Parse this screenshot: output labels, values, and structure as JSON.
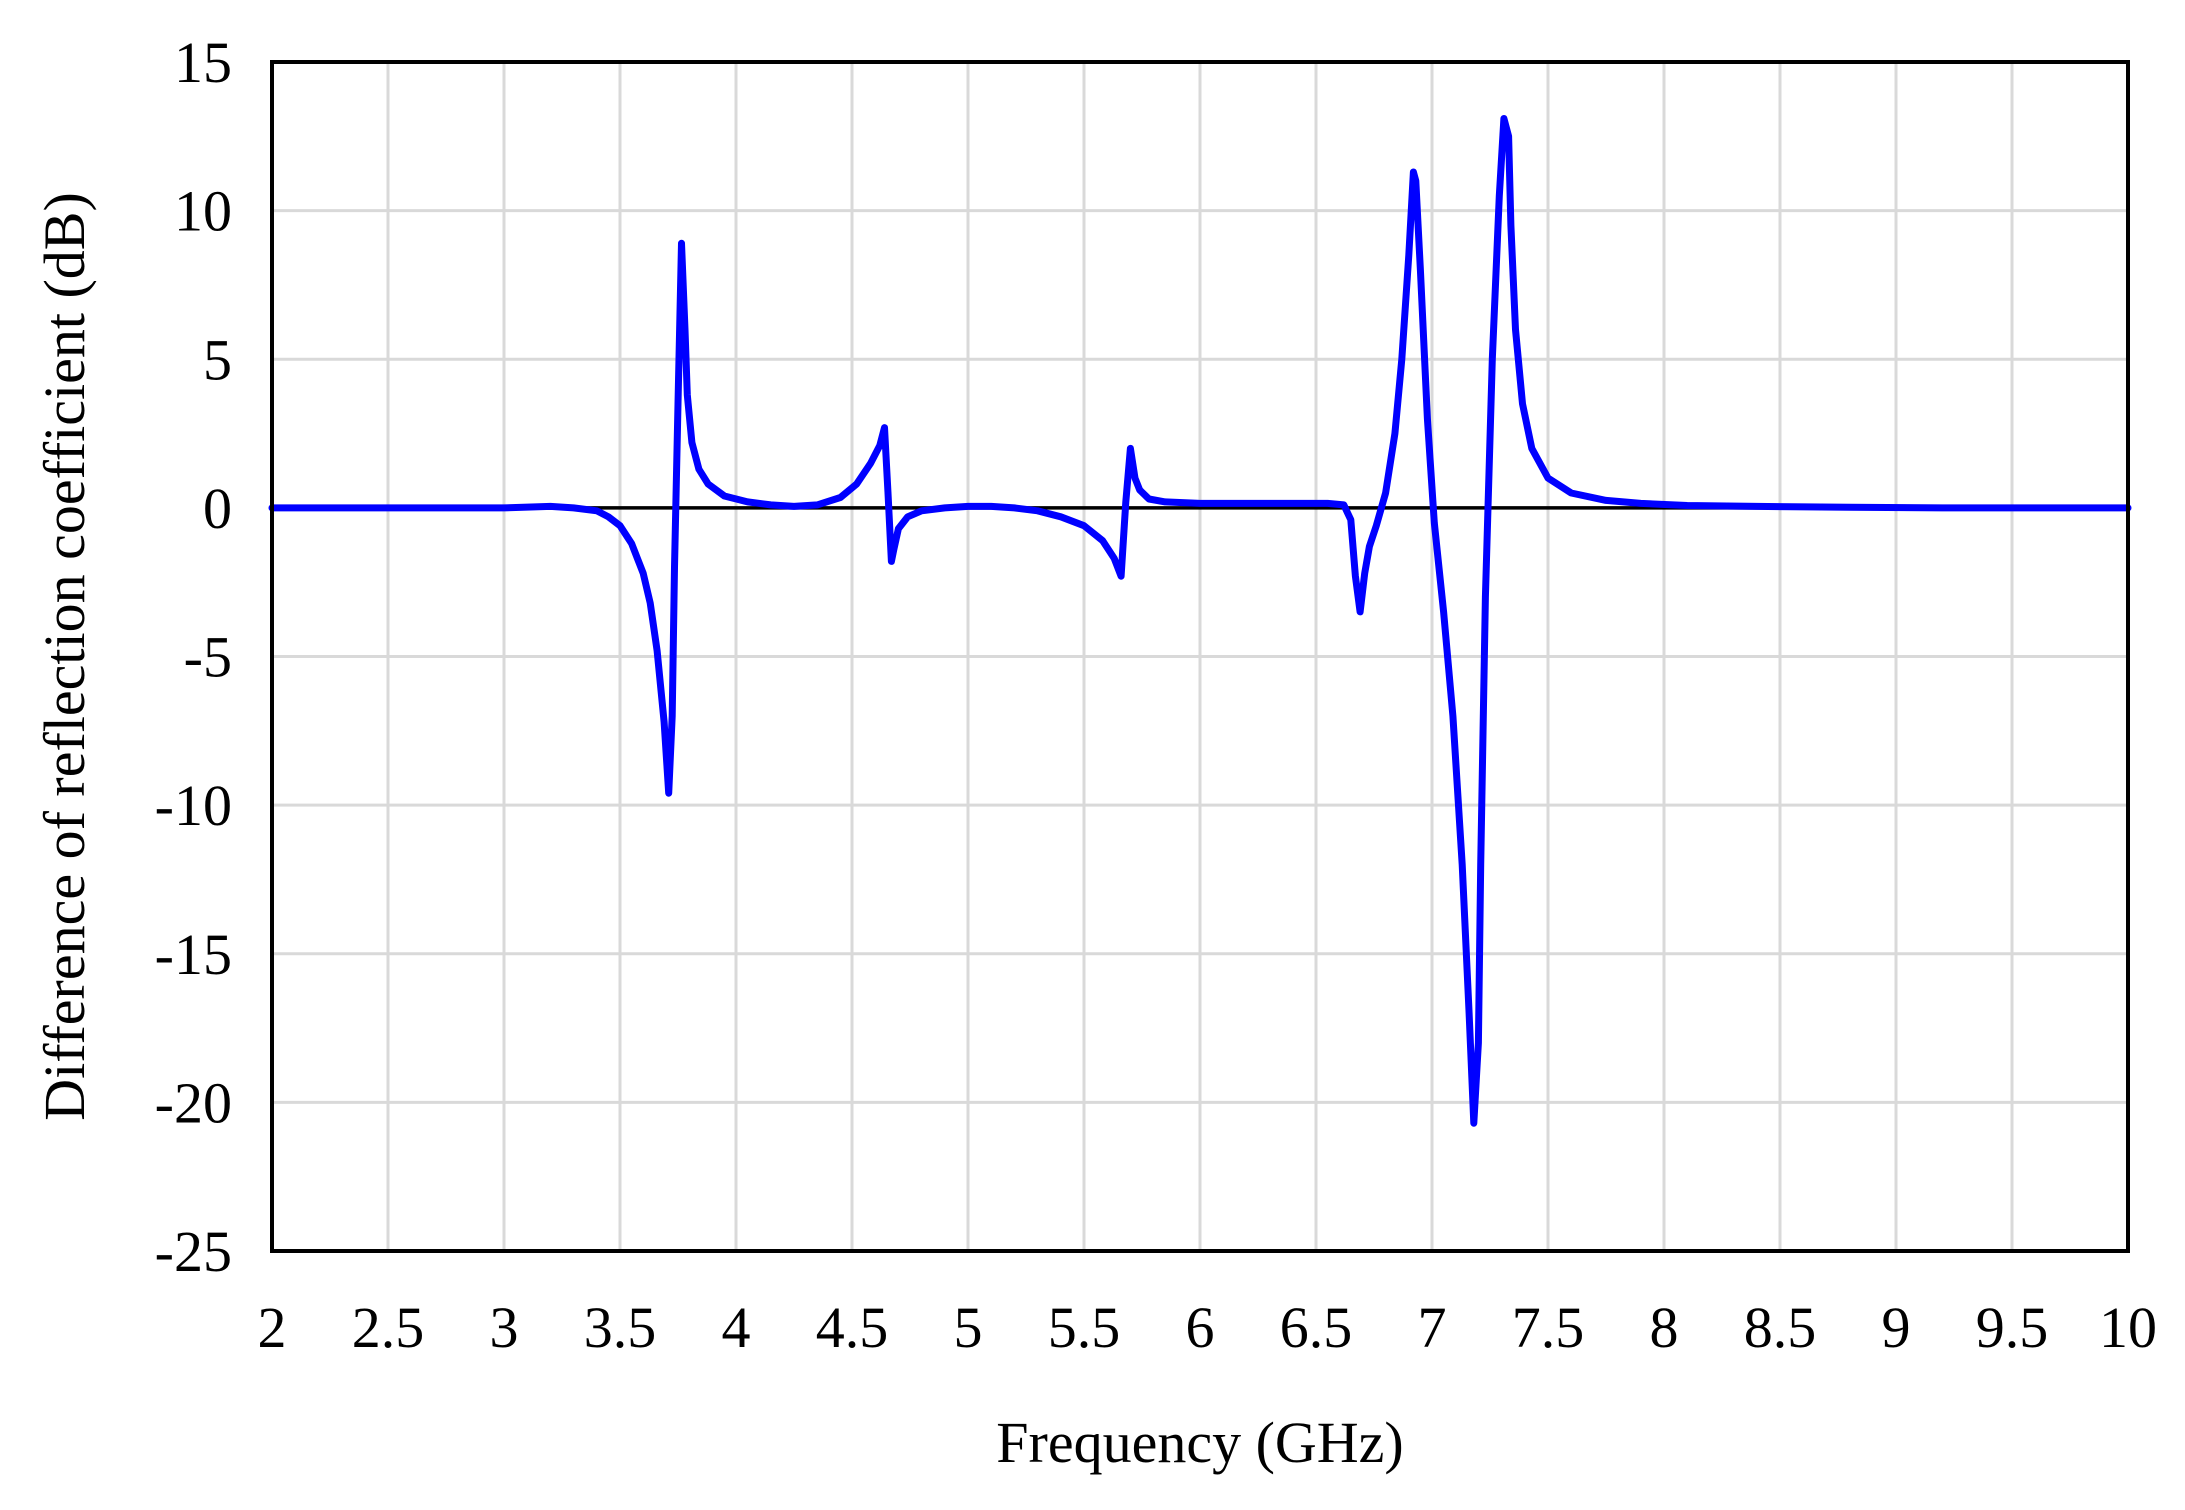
{
  "chart_data": {
    "type": "line",
    "title": "",
    "xlabel": "Frequency  (GHz)",
    "ylabel": "Difference  of reflection  coefficient   (dB)",
    "xlim": [
      2,
      10
    ],
    "ylim": [
      -25,
      15
    ],
    "xticks": [
      "2",
      "2.5",
      "3",
      "3.5",
      "4",
      "4.5",
      "5",
      "5.5",
      "6",
      "6.5",
      "7",
      "7.5",
      "8",
      "8.5",
      "9",
      "9.5",
      "10"
    ],
    "yticks": [
      "15",
      "10",
      "5",
      "0",
      "-5",
      "-10",
      "-15",
      "-20",
      "-25"
    ],
    "grid": true,
    "legend": "none",
    "zero_line": true,
    "colors": {
      "series": "#0000ff",
      "grid": "#d9d9d9",
      "axis": "#000000",
      "zero_line": "#000000"
    },
    "series": [
      {
        "x": [
          2.0,
          2.5,
          3.0,
          3.2,
          3.3,
          3.4,
          3.45,
          3.5,
          3.55,
          3.6,
          3.63,
          3.66,
          3.69,
          3.71,
          3.725,
          3.735,
          3.75,
          3.765,
          3.78,
          3.79,
          3.81,
          3.84,
          3.88,
          3.95,
          4.05,
          4.15,
          4.25,
          4.35,
          4.45,
          4.52,
          4.58,
          4.62,
          4.64,
          4.655,
          4.67,
          4.68,
          4.7,
          4.74,
          4.8,
          4.9,
          5.0,
          5.1,
          5.2,
          5.3,
          5.4,
          5.5,
          5.58,
          5.63,
          5.66,
          5.68,
          5.7,
          5.72,
          5.74,
          5.78,
          5.85,
          6.0,
          6.2,
          6.4,
          6.55,
          6.62,
          6.65,
          6.67,
          6.69,
          6.71,
          6.73,
          6.76,
          6.8,
          6.84,
          6.87,
          6.9,
          6.92,
          6.93,
          6.95,
          6.98,
          7.01,
          7.05,
          7.09,
          7.13,
          7.16,
          7.18,
          7.2,
          7.21,
          7.23,
          7.26,
          7.29,
          7.31,
          7.33,
          7.34,
          7.36,
          7.39,
          7.43,
          7.5,
          7.6,
          7.75,
          7.9,
          8.1,
          8.4,
          8.8,
          9.2,
          9.6,
          10.0
        ],
        "y": [
          0.0,
          0.0,
          0.0,
          0.05,
          0.0,
          -0.1,
          -0.3,
          -0.6,
          -1.2,
          -2.2,
          -3.2,
          -4.8,
          -7.2,
          -9.6,
          -7.0,
          -2.0,
          3.5,
          8.9,
          6.0,
          3.8,
          2.2,
          1.3,
          0.8,
          0.4,
          0.2,
          0.1,
          0.05,
          0.1,
          0.35,
          0.8,
          1.5,
          2.1,
          2.7,
          0.5,
          -1.8,
          -1.4,
          -0.7,
          -0.3,
          -0.1,
          0.0,
          0.05,
          0.05,
          0.0,
          -0.1,
          -0.3,
          -0.6,
          -1.1,
          -1.7,
          -2.3,
          0.2,
          2.0,
          1.0,
          0.6,
          0.3,
          0.2,
          0.15,
          0.15,
          0.15,
          0.15,
          0.1,
          -0.4,
          -2.3,
          -3.5,
          -2.2,
          -1.3,
          -0.6,
          0.5,
          2.5,
          5.0,
          8.5,
          11.3,
          11.0,
          8.0,
          3.0,
          -0.5,
          -3.5,
          -7.0,
          -12.0,
          -17.0,
          -20.7,
          -18.0,
          -12.0,
          -3.0,
          5.0,
          10.5,
          13.1,
          12.5,
          9.5,
          6.0,
          3.5,
          2.0,
          1.0,
          0.5,
          0.25,
          0.15,
          0.08,
          0.05,
          0.02,
          0.0,
          0.0,
          0.0
        ]
      }
    ]
  }
}
